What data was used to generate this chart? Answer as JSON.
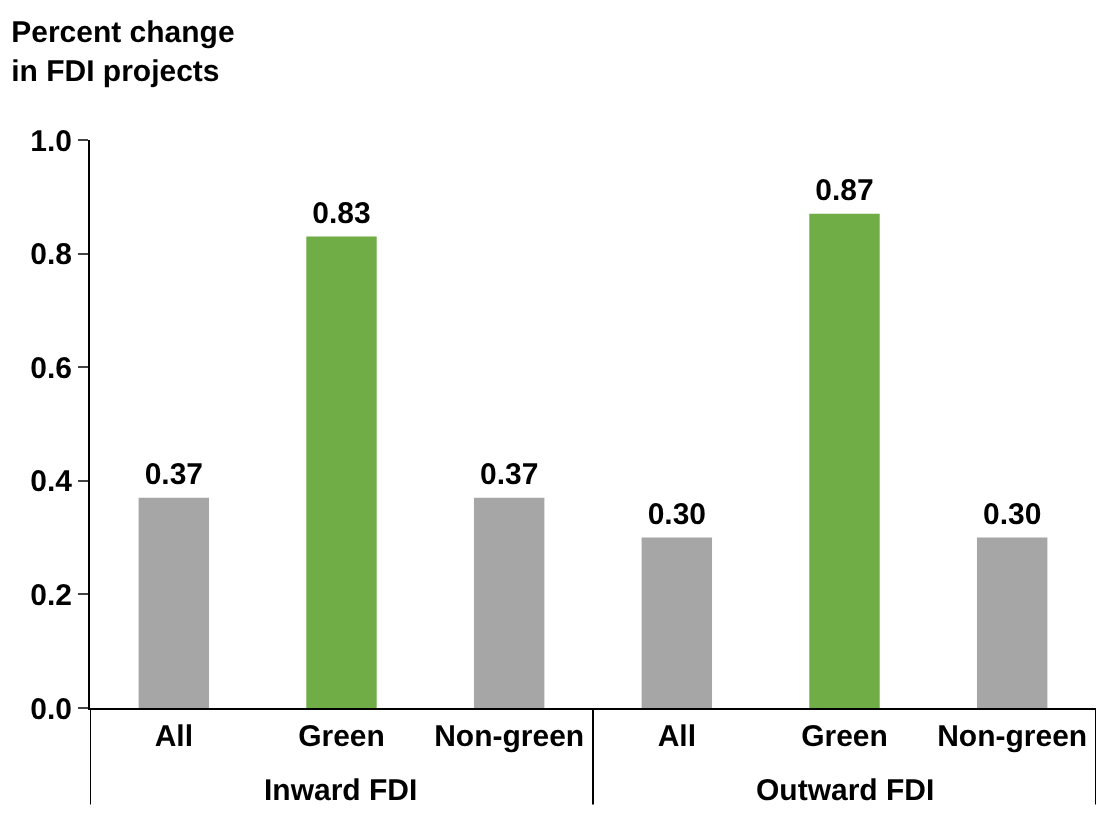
{
  "chart_data": {
    "type": "bar",
    "title": "Percent change\nin FDI projects",
    "categories": [
      "All",
      "Green",
      "Non-green",
      "All",
      "Green",
      "Non-green"
    ],
    "values": [
      0.37,
      0.83,
      0.37,
      0.3,
      0.87,
      0.3
    ],
    "colors": [
      "#a6a6a6",
      "#70ad47",
      "#a6a6a6",
      "#a6a6a6",
      "#70ad47",
      "#a6a6a6"
    ],
    "value_labels": [
      "0.37",
      "0.83",
      "0.37",
      "0.30",
      "0.87",
      "0.30"
    ],
    "ylim": [
      0,
      1.0
    ],
    "yticks": [
      {
        "value": 0,
        "label": "0.0"
      },
      {
        "value": 0.2,
        "label": "0.2"
      },
      {
        "value": 0.4,
        "label": "0.4"
      },
      {
        "value": 0.6,
        "label": "0.6"
      },
      {
        "value": 0.8,
        "label": "0.8"
      },
      {
        "value": 1.0,
        "label": "1.0"
      }
    ],
    "annotations": [
      "Inward FDI",
      "Outward FDI"
    ]
  }
}
